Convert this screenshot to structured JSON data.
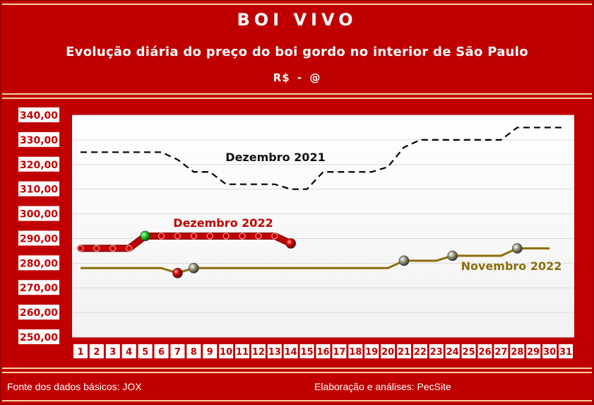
{
  "header": {
    "title": "BOI VIVO",
    "subtitle": "Evolução diária do preço do boi gordo no interior de São Paulo",
    "unit": "R$ - @"
  },
  "footer": {
    "source": "Fonte dos dados básicos: JOX",
    "credit": "Elaboração e análises: PecSite"
  },
  "colors": {
    "frame": "#c00000",
    "plot_background": "#ffffff",
    "dez2021": "#000000",
    "dez2022": "#c00000",
    "nov2022": "#8b6d0a"
  },
  "chart_data": {
    "type": "line",
    "title": "BOI VIVO",
    "subtitle": "Evolução diária do preço do boi gordo no interior de São Paulo",
    "ylabel": "R$ - @",
    "xlabel": "",
    "ylim": [
      250,
      340
    ],
    "yticks": [
      "250,00",
      "260,00",
      "270,00",
      "280,00",
      "290,00",
      "300,00",
      "310,00",
      "320,00",
      "330,00",
      "340,00"
    ],
    "x": [
      1,
      2,
      3,
      4,
      5,
      6,
      7,
      8,
      9,
      10,
      11,
      12,
      13,
      14,
      15,
      16,
      17,
      18,
      19,
      20,
      21,
      22,
      23,
      24,
      25,
      26,
      27,
      28,
      29,
      30,
      31
    ],
    "grid": true,
    "legend": "inline",
    "series": [
      {
        "name": "Dezembro 2021",
        "style": "dashed",
        "color": "#000000",
        "x": [
          1,
          2,
          3,
          4,
          5,
          6,
          7,
          8,
          9,
          10,
          11,
          12,
          13,
          14,
          15,
          16,
          17,
          18,
          19,
          20,
          21,
          22,
          23,
          24,
          25,
          26,
          27,
          28,
          29,
          30,
          31
        ],
        "values": [
          325,
          325,
          325,
          325,
          325,
          325,
          322,
          317,
          317,
          312,
          312,
          312,
          312,
          310,
          310,
          317,
          317,
          317,
          317,
          319,
          327,
          330,
          330,
          330,
          330,
          330,
          330,
          335,
          335,
          335,
          335
        ]
      },
      {
        "name": "Dezembro 2022",
        "style": "thick",
        "color": "#c00000",
        "x": [
          1,
          2,
          3,
          4,
          5,
          6,
          7,
          8,
          9,
          10,
          11,
          12,
          13,
          14
        ],
        "values": [
          286,
          286,
          286,
          286,
          291,
          291,
          291,
          291,
          291,
          291,
          291,
          291,
          291,
          288
        ],
        "markers": [
          {
            "x": 5,
            "color": "green"
          },
          {
            "x": 14,
            "color": "red"
          }
        ]
      },
      {
        "name": "Novembro 2022",
        "style": "solid",
        "color": "#8b6d0a",
        "x": [
          1,
          2,
          3,
          4,
          5,
          6,
          7,
          8,
          9,
          10,
          11,
          12,
          13,
          14,
          15,
          16,
          17,
          18,
          19,
          20,
          21,
          22,
          23,
          24,
          25,
          26,
          27,
          28,
          29,
          30
        ],
        "values": [
          278,
          278,
          278,
          278,
          278,
          278,
          276,
          278,
          278,
          278,
          278,
          278,
          278,
          278,
          278,
          278,
          278,
          278,
          278,
          278,
          281,
          281,
          281,
          283,
          283,
          283,
          283,
          286,
          286,
          286
        ],
        "markers": [
          {
            "x": 7,
            "color": "red"
          },
          {
            "x": 8,
            "color": "gray"
          },
          {
            "x": 21,
            "color": "gray"
          },
          {
            "x": 24,
            "color": "gray"
          },
          {
            "x": 28,
            "color": "gray"
          }
        ]
      }
    ]
  }
}
